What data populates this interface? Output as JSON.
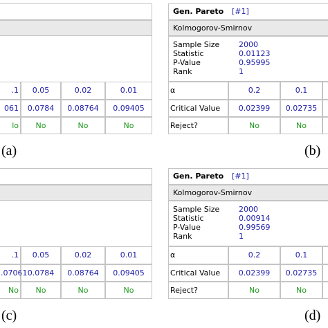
{
  "panels": [
    {
      "label": "(a)",
      "table": {
        "alpha": [
          ".1",
          "0.05",
          "0.02",
          "0.01"
        ],
        "critical_value": [
          "061",
          "0.0784",
          "0.08764",
          "0.09405"
        ],
        "reject": [
          "lo",
          "No",
          "No",
          "No"
        ]
      }
    },
    {
      "label": "(b)",
      "title": "Gen. Pareto",
      "title_tag": "[#1]",
      "test": "Kolmogorov-Smirnov",
      "stats": {
        "names": [
          "Sample Size",
          "Statistic",
          "P-Value",
          "Rank"
        ],
        "values": [
          "2000",
          "0.01123",
          "0.95995",
          "1"
        ]
      },
      "table": {
        "alpha_label": "α",
        "alpha": [
          "0.2",
          "0.1"
        ],
        "critical_value_label": "Critical Value",
        "critical_value": [
          "0.02399",
          "0.02735"
        ],
        "reject_label": "Reject?",
        "reject": [
          "No",
          "No"
        ]
      }
    },
    {
      "label": "(c)",
      "table": {
        "alpha": [
          ".1",
          "0.05",
          "0.02",
          "0.01"
        ],
        "critical_value": [
          ".07061",
          "0.0784",
          "0.08764",
          "0.09405"
        ],
        "reject": [
          "No",
          "No",
          "No",
          "No"
        ]
      }
    },
    {
      "label": "(d)",
      "title": "Gen. Pareto",
      "title_tag": "[#1]",
      "test": "Kolmogorov-Smirnov",
      "stats": {
        "names": [
          "Sample Size",
          "Statistic",
          "P-Value",
          "Rank"
        ],
        "values": [
          "2000",
          "0.00914",
          "0.99569",
          "1"
        ]
      },
      "table": {
        "alpha_label": "α",
        "alpha": [
          "0.2",
          "0.1"
        ],
        "critical_value_label": "Critical Value",
        "critical_value": [
          "0.02399",
          "0.02735"
        ],
        "reject_label": "Reject?",
        "reject": [
          "No",
          "No"
        ]
      }
    }
  ]
}
